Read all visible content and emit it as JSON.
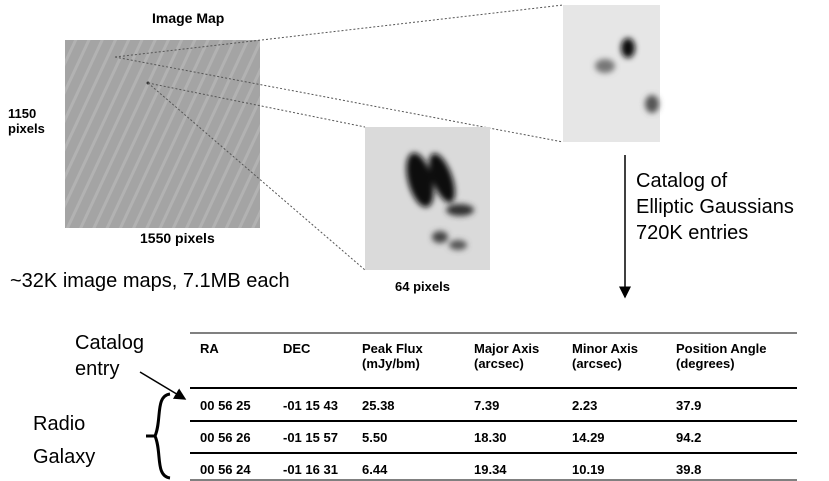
{
  "image_map": {
    "title": "Image Map",
    "height_label": [
      "1150",
      "pixels"
    ],
    "width_label": "1550 pixels"
  },
  "summary": "~32K image maps, 7.1MB each",
  "zoom_label": "64 pixels",
  "catalog_note": [
    "Catalog of",
    "Elliptic Gaussians",
    "720K entries"
  ],
  "catalog_entry_label": [
    "Catalog",
    "entry"
  ],
  "radio_galaxy_label": [
    "Radio",
    "Galaxy"
  ],
  "table": {
    "header": [
      [
        "RA"
      ],
      [
        "DEC"
      ],
      [
        "Peak Flux",
        "(mJy/bm)"
      ],
      [
        "Major Axis",
        "(arcsec)"
      ],
      [
        "Minor Axis",
        "(arcsec)"
      ],
      [
        "Position Angle",
        "(degrees)"
      ]
    ],
    "rows": [
      [
        "00 56 25",
        "-01 15 43",
        "25.38",
        "7.39",
        "2.23",
        "37.9"
      ],
      [
        "00 56 26",
        "-01 15 57",
        "5.50",
        "18.30",
        "14.29",
        "94.2"
      ],
      [
        "00 56 24",
        "-01 16 31",
        "6.44",
        "19.34",
        "10.19",
        "39.8"
      ]
    ]
  }
}
